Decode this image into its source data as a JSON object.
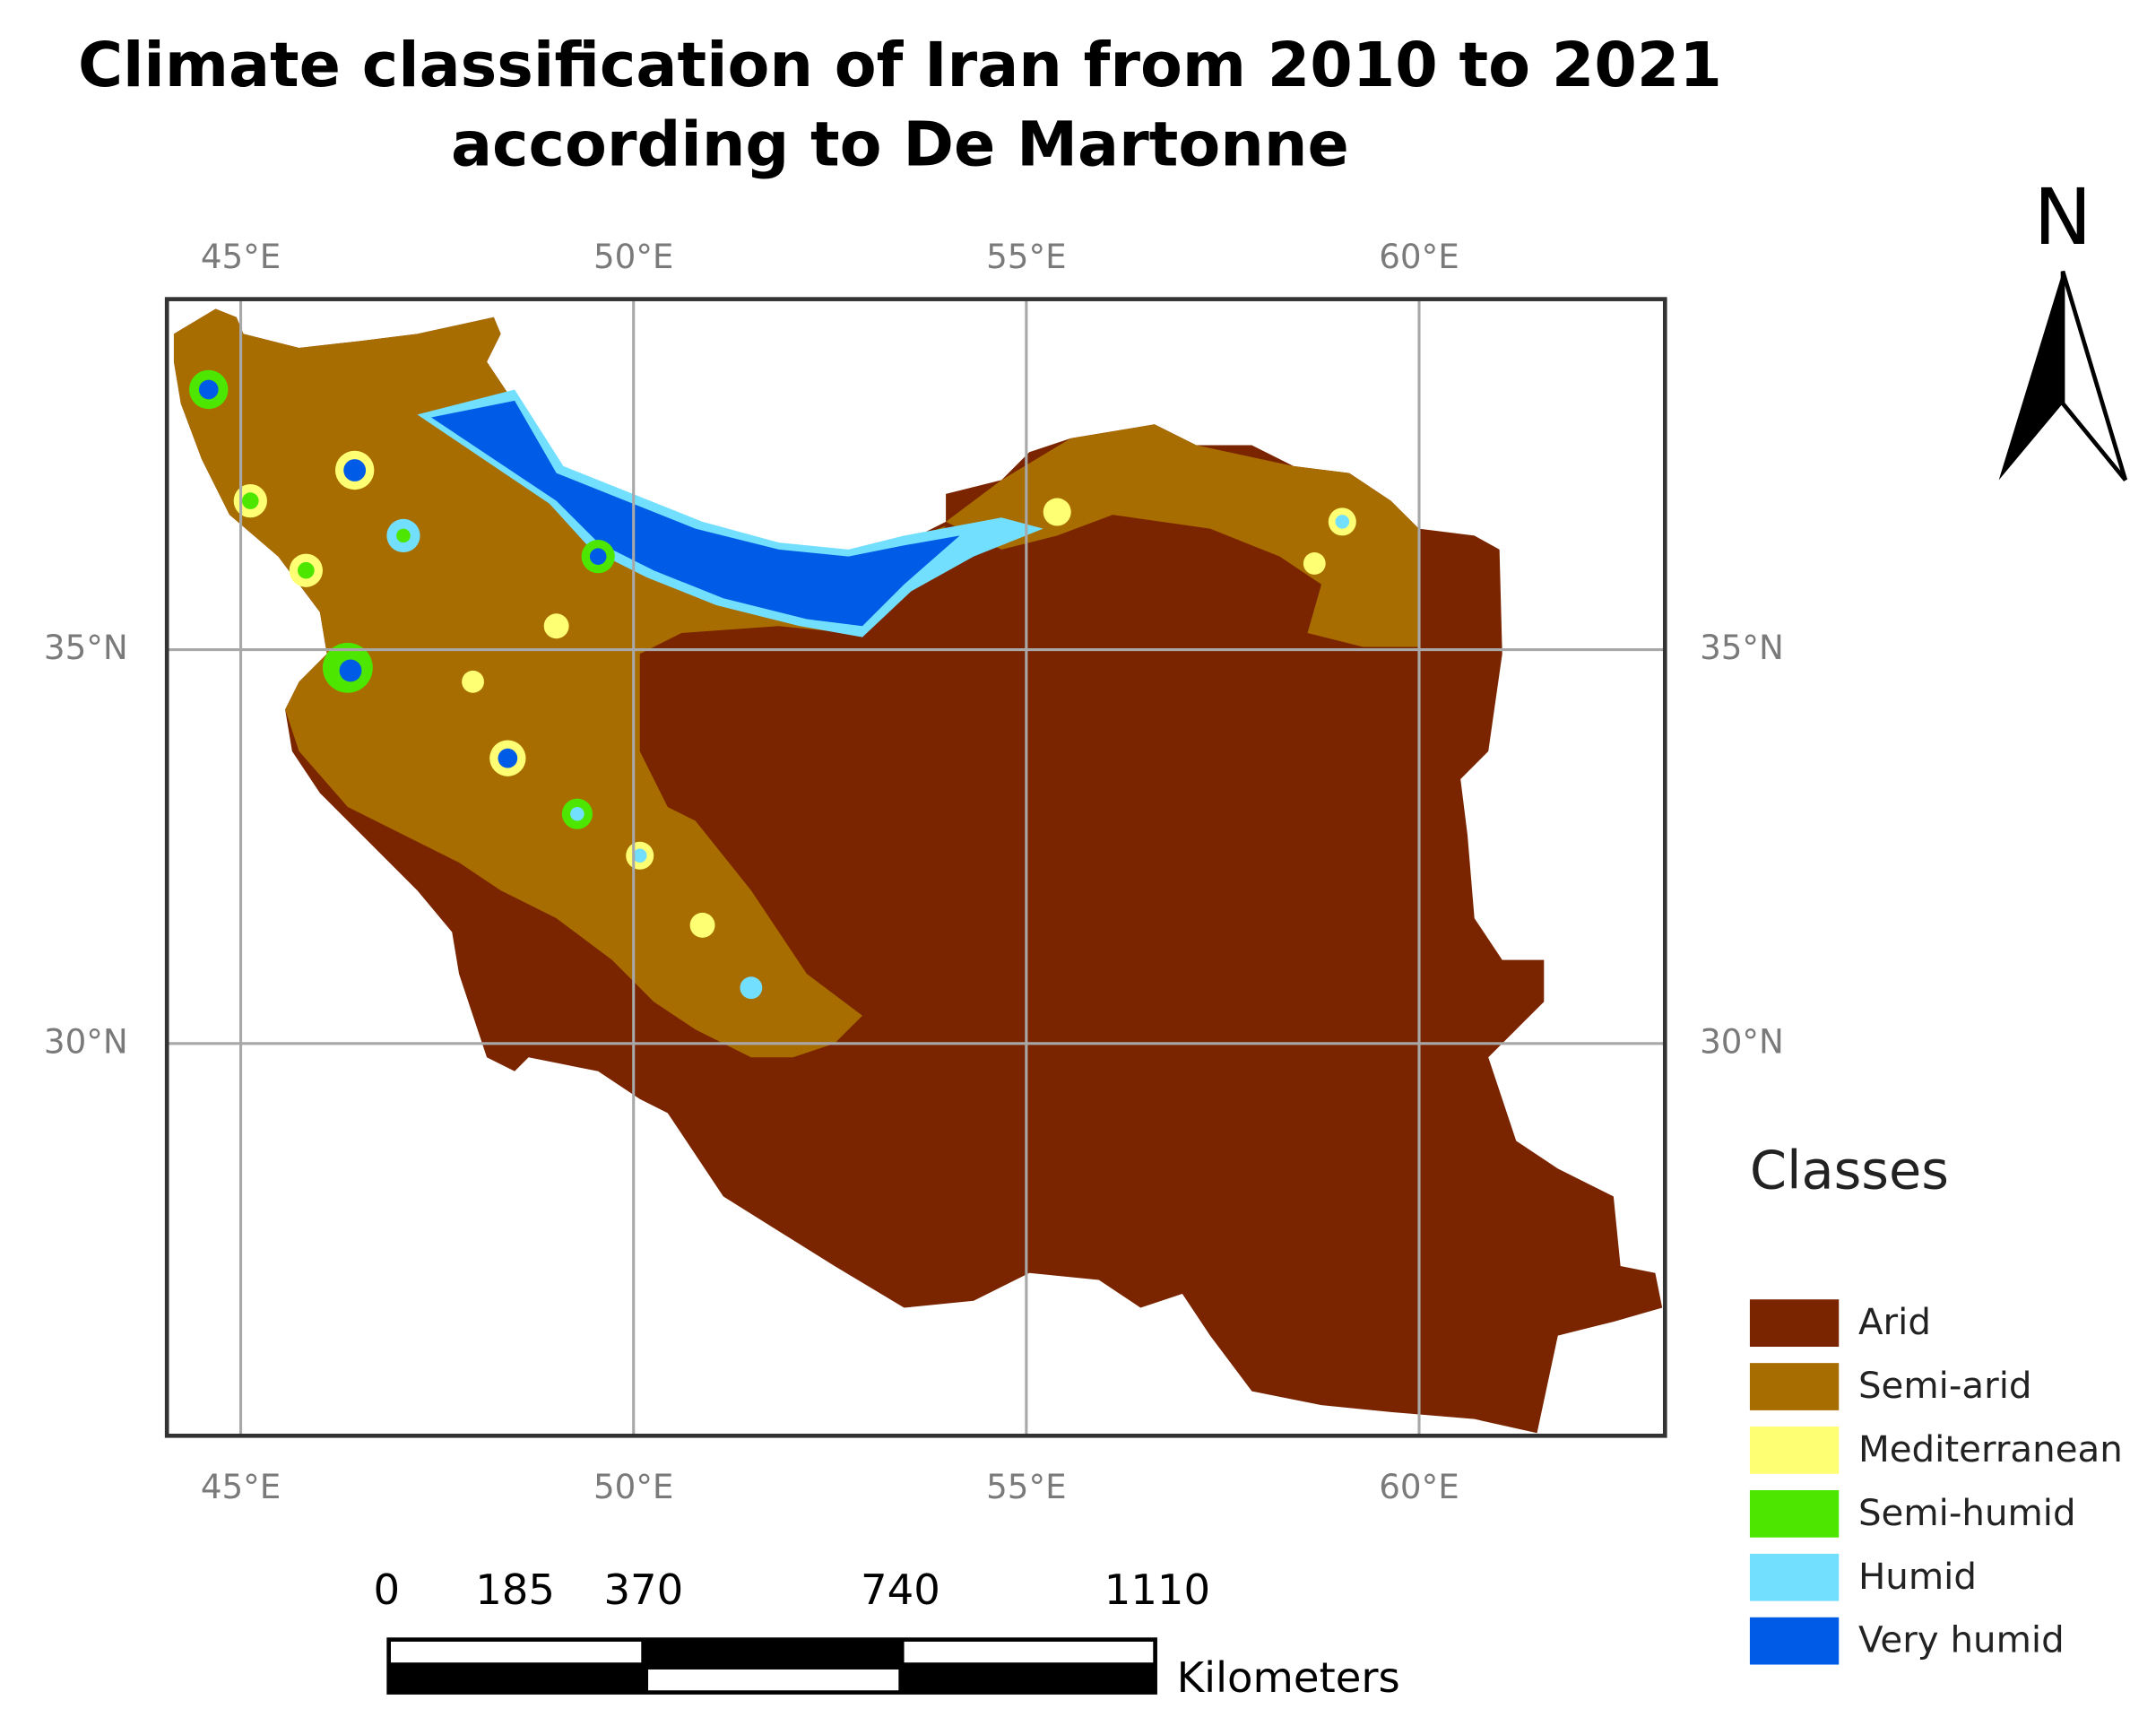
{
  "map": {
    "title": [
      "Climate classification of Iran from 2010 to 2021",
      "according to De Martonne"
    ],
    "xlim": [
      44.06,
      63.13
    ],
    "ylim": [
      25.02,
      39.45
    ],
    "xticks": [
      {
        "value": 45,
        "label": "45°E"
      },
      {
        "value": 50,
        "label": "50°E"
      },
      {
        "value": 55,
        "label": "55°E"
      },
      {
        "value": 60,
        "label": "60°E"
      }
    ],
    "yticks": [
      {
        "value": 30,
        "label": "30°N"
      },
      {
        "value": 35,
        "label": "35°N"
      }
    ],
    "grid": true,
    "north_label": "N",
    "legend": {
      "title": "Classes",
      "items": [
        {
          "name": "Arid",
          "color": "#7a2500"
        },
        {
          "name": "Semi-arid",
          "color": "#a86d00"
        },
        {
          "name": "Mediterranean",
          "color": "#ffff73"
        },
        {
          "name": "Semi-humid",
          "color": "#4ce600"
        },
        {
          "name": "Humid",
          "color": "#73dfff"
        },
        {
          "name": "Very humid",
          "color": "#005ce6"
        }
      ]
    },
    "scale_bar": {
      "ticks": [
        0,
        185,
        370,
        740,
        1110
      ],
      "unit": "Kilometers"
    }
  }
}
